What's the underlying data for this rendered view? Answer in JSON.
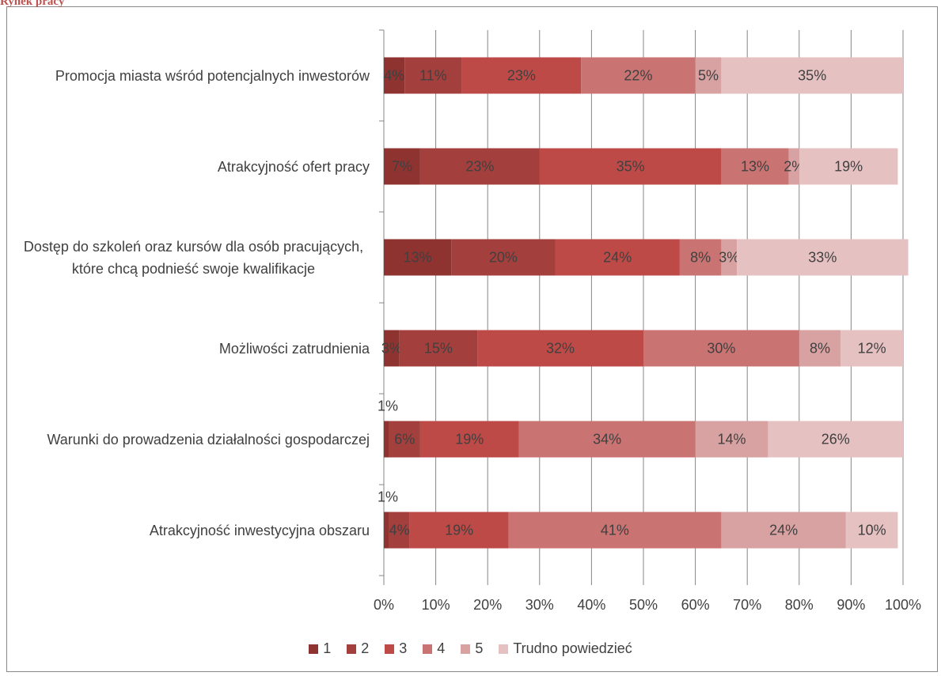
{
  "chart_data": {
    "type": "stacked_barh",
    "title": "Rynek pracy",
    "categories": [
      "Promocja miasta wśród potencjalnych inwestorów",
      "Atrakcyjność ofert pracy",
      "Dostęp do szkoleń oraz kursów dla osób pracujących, które chcą podnieść swoje kwalifikacje",
      "Możliwości zatrudnienia",
      "Warunki do prowadzenia działalności gospodarczej",
      "Atrakcyjność inwestycyjna obszaru"
    ],
    "series": [
      {
        "name": "1",
        "color": "#8e3330",
        "values": [
          4,
          7,
          13,
          3,
          1,
          1
        ],
        "value_labels": [
          "4%",
          "7%",
          "13%",
          "3%",
          "1%",
          "1%"
        ]
      },
      {
        "name": "2",
        "color": "#a33f3c",
        "values": [
          11,
          23,
          20,
          15,
          6,
          4
        ],
        "value_labels": [
          "11%",
          "23%",
          "20%",
          "15%",
          "6%",
          "4%"
        ]
      },
      {
        "name": "3",
        "color": "#bd4a47",
        "values": [
          23,
          35,
          24,
          32,
          19,
          19
        ],
        "value_labels": [
          "23%",
          "35%",
          "24%",
          "32%",
          "19%",
          "19%"
        ]
      },
      {
        "name": "4",
        "color": "#c97372",
        "values": [
          22,
          13,
          8,
          30,
          34,
          41
        ],
        "value_labels": [
          "22%",
          "13%",
          "8%",
          "30%",
          "34%",
          "41%"
        ]
      },
      {
        "name": "5",
        "color": "#d9a2a2",
        "values": [
          5,
          2,
          3,
          8,
          14,
          24
        ],
        "value_labels": [
          "5%",
          "2%",
          "3%",
          "8%",
          "14%",
          "24%"
        ]
      },
      {
        "name": "Trudno powiedzieć",
        "color": "#e6c1c2",
        "values": [
          35,
          19,
          33,
          12,
          26,
          10
        ],
        "value_labels": [
          "35%",
          "19%",
          "33%",
          "12%",
          "26%",
          "10%"
        ]
      }
    ],
    "xlim": [
      0,
      100
    ],
    "xticks": [
      {
        "value": 0,
        "label": "0%"
      },
      {
        "value": 10,
        "label": "10%"
      },
      {
        "value": 20,
        "label": "20%"
      },
      {
        "value": 30,
        "label": "30%"
      },
      {
        "value": 40,
        "label": "40%"
      },
      {
        "value": 50,
        "label": "50%"
      },
      {
        "value": 60,
        "label": "60%"
      },
      {
        "value": 70,
        "label": "70%"
      },
      {
        "value": 80,
        "label": "80%"
      },
      {
        "value": 90,
        "label": "90%"
      },
      {
        "value": 100,
        "label": "100%"
      }
    ],
    "grid": true,
    "legend": "bottom"
  }
}
